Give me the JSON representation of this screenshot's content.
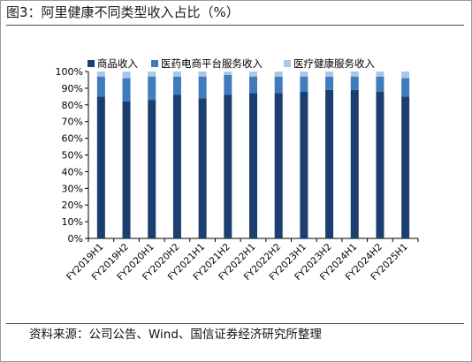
{
  "title": "图3：阿里健康不同类型收入占比（%）",
  "source": "资料来源：公司公告、Wind、国信证券经济研究所整理",
  "chart_data": {
    "type": "bar",
    "stacked": true,
    "title": "",
    "xlabel": "",
    "ylabel": "",
    "ylim": [
      0,
      100
    ],
    "y_ticks": [
      "0%",
      "10%",
      "20%",
      "30%",
      "40%",
      "50%",
      "60%",
      "70%",
      "80%",
      "90%",
      "100%"
    ],
    "legend_position": "top",
    "categories": [
      "FY2019H1",
      "FY2019H2",
      "FY2020H1",
      "FY2020H2",
      "FY2021H1",
      "FY2021H2",
      "FY2022H1",
      "FY2022H2",
      "FY2023H1",
      "FY2023H2",
      "FY2024H1",
      "FY2024H2",
      "FY2025H1"
    ],
    "series": [
      {
        "name": "商品收入",
        "color": "#1b3f6e",
        "values": [
          85,
          82,
          83,
          86,
          84,
          86,
          87,
          87,
          88,
          89,
          89,
          88,
          85
        ]
      },
      {
        "name": "医药电商平台服务收入",
        "color": "#3f7bbd",
        "values": [
          12,
          14,
          14,
          11,
          13,
          12,
          10,
          10,
          9,
          8,
          8,
          9,
          11
        ]
      },
      {
        "name": "医疗健康服务收入",
        "color": "#a9c8e8",
        "values": [
          3,
          4,
          3,
          3,
          3,
          2,
          3,
          3,
          3,
          3,
          3,
          3,
          4
        ]
      }
    ]
  }
}
